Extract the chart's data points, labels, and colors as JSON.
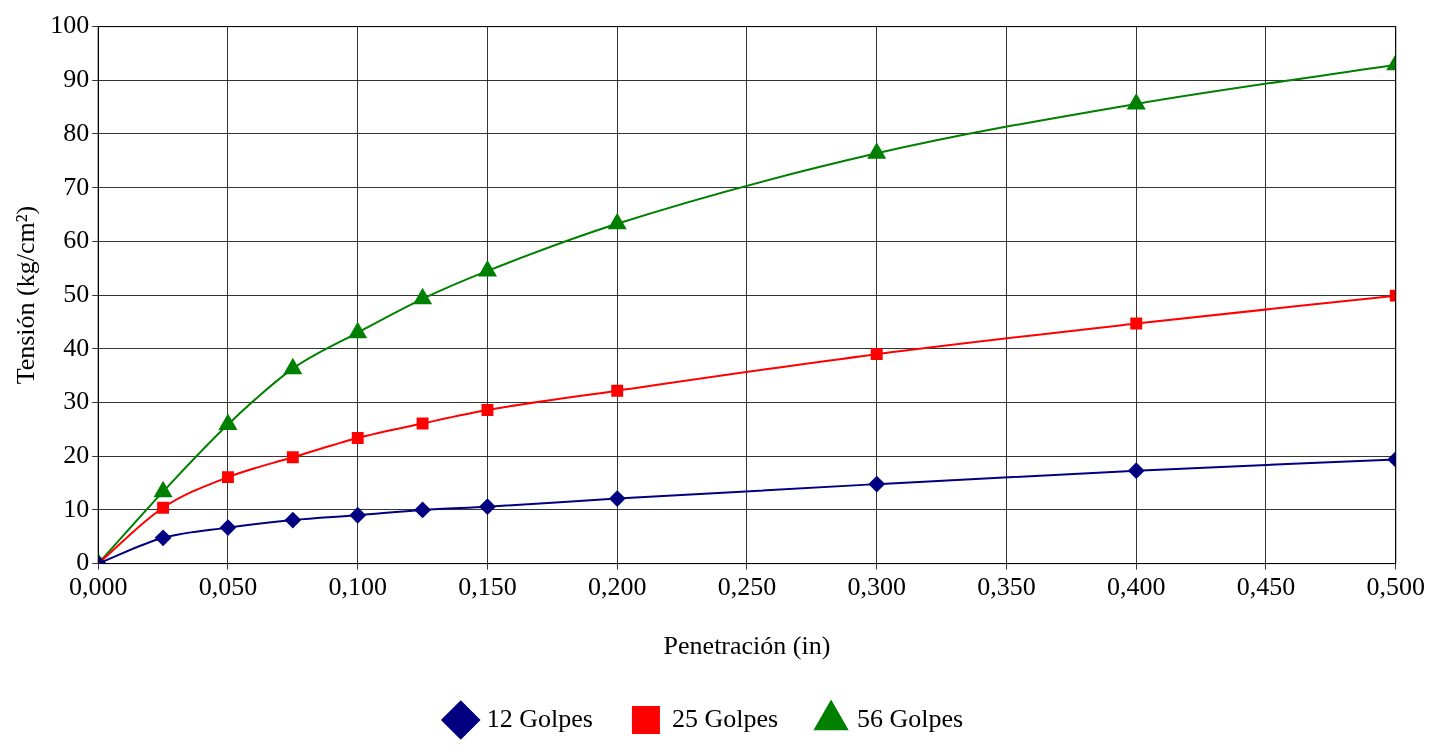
{
  "chart_data": {
    "type": "line",
    "xlabel": "Penetración (in)",
    "ylabel": "Tensión (kg/cm²)",
    "xlim": [
      0,
      0.5
    ],
    "ylim": [
      0,
      100
    ],
    "xticks": [
      {
        "value": 0,
        "label": "0,000"
      },
      {
        "value": 0.05,
        "label": "0,050"
      },
      {
        "value": 0.1,
        "label": "0,100"
      },
      {
        "value": 0.15,
        "label": "0,150"
      },
      {
        "value": 0.2,
        "label": "0,200"
      },
      {
        "value": 0.25,
        "label": "0,250"
      },
      {
        "value": 0.3,
        "label": "0,300"
      },
      {
        "value": 0.35,
        "label": "0,350"
      },
      {
        "value": 0.4,
        "label": "0,400"
      },
      {
        "value": 0.45,
        "label": "0,450"
      },
      {
        "value": 0.5,
        "label": "0,500"
      }
    ],
    "yticks": [
      0,
      10,
      20,
      30,
      40,
      50,
      60,
      70,
      80,
      90,
      100
    ],
    "x": [
      0,
      0.025,
      0.05,
      0.075,
      0.1,
      0.125,
      0.15,
      0.2,
      0.3,
      0.4,
      0.5
    ],
    "series": [
      {
        "name": "12 Golpes",
        "color": "#000080",
        "marker": "diamond",
        "values": [
          0,
          4.8,
          6.7,
          8.1,
          9.0,
          10.0,
          10.6,
          12.1,
          14.8,
          17.3,
          19.4
        ]
      },
      {
        "name": "25 Golpes",
        "color": "#ff0000",
        "marker": "square",
        "values": [
          0,
          10.4,
          16.1,
          19.8,
          23.4,
          26.1,
          28.6,
          32.2,
          39.0,
          44.7,
          49.9
        ]
      },
      {
        "name": "56 Golpes",
        "color": "#008000",
        "marker": "triangle",
        "values": [
          0,
          13.4,
          25.9,
          36.3,
          43.0,
          49.3,
          54.5,
          63.3,
          76.4,
          85.6,
          92.9
        ]
      }
    ],
    "grid": true,
    "legend": "bottom",
    "line_style": "solid"
  }
}
